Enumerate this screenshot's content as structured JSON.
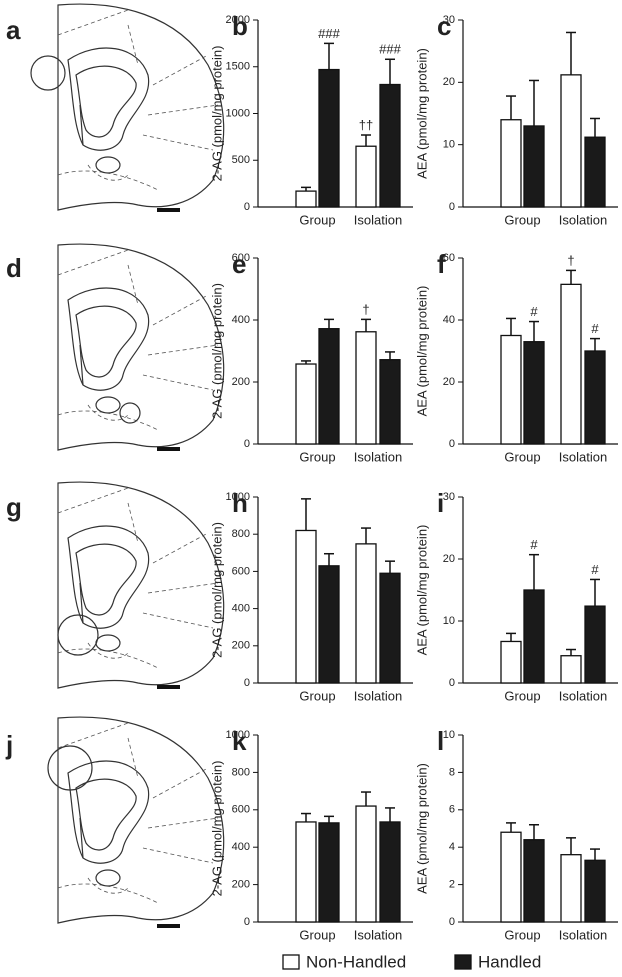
{
  "brain_panels": [
    "a",
    "d",
    "g",
    "j"
  ],
  "legend": [
    {
      "name": "Non-Handled",
      "color": "#ffffff"
    },
    {
      "name": "Handled",
      "color": "#1a1a1a"
    }
  ],
  "chart_data": [
    {
      "type": "bar",
      "panel": "b",
      "y_label": "2-AG (pmol/mg protein)",
      "categories": [
        "Group",
        "Isolation"
      ],
      "ylim": [
        0,
        2000
      ],
      "yticks": [
        0,
        500,
        1000,
        1500,
        2000
      ],
      "series": [
        {
          "values": [
            170,
            650
          ],
          "errors": [
            40,
            120
          ],
          "annotations": [
            null,
            "††"
          ]
        },
        {
          "values": [
            1470,
            1310
          ],
          "errors": [
            280,
            270
          ],
          "annotations": [
            "###",
            "###"
          ]
        }
      ]
    },
    {
      "type": "bar",
      "panel": "c",
      "y_label": "AEA (pmol/mg protein)",
      "categories": [
        "Group",
        "Isolation"
      ],
      "ylim": [
        0,
        30
      ],
      "yticks": [
        0,
        10,
        20,
        30
      ],
      "series": [
        {
          "values": [
            14,
            21.2
          ],
          "errors": [
            3.8,
            6.8
          ],
          "annotations": [
            null,
            null
          ]
        },
        {
          "values": [
            13,
            11.2
          ],
          "errors": [
            7.3,
            3
          ],
          "annotations": [
            null,
            null
          ]
        }
      ]
    },
    {
      "type": "bar",
      "panel": "e",
      "y_label": "2-AG (pmol/mg protein)",
      "categories": [
        "Group",
        "Isolation"
      ],
      "ylim": [
        0,
        600
      ],
      "yticks": [
        0,
        200,
        400,
        600
      ],
      "series": [
        {
          "values": [
            258,
            362
          ],
          "errors": [
            10,
            40
          ],
          "annotations": [
            null,
            "†"
          ]
        },
        {
          "values": [
            372,
            272
          ],
          "errors": [
            30,
            25
          ],
          "annotations": [
            null,
            null
          ]
        }
      ]
    },
    {
      "type": "bar",
      "panel": "f",
      "y_label": "AEA (pmol/mg protein)",
      "categories": [
        "Group",
        "Isolation"
      ],
      "ylim": [
        0,
        60
      ],
      "yticks": [
        0,
        20,
        40,
        60
      ],
      "series": [
        {
          "values": [
            35,
            51.5
          ],
          "errors": [
            5.5,
            4.5
          ],
          "annotations": [
            null,
            "†"
          ]
        },
        {
          "values": [
            33,
            30
          ],
          "errors": [
            6.5,
            4
          ],
          "annotations": [
            "#",
            "#"
          ]
        }
      ]
    },
    {
      "type": "bar",
      "panel": "h",
      "y_label": "2-AG (pmol/mg protein)",
      "categories": [
        "Group",
        "Isolation"
      ],
      "ylim": [
        0,
        1000
      ],
      "yticks": [
        0,
        200,
        400,
        600,
        800,
        1000
      ],
      "series": [
        {
          "values": [
            820,
            748
          ],
          "errors": [
            170,
            85
          ],
          "annotations": [
            null,
            null
          ]
        },
        {
          "values": [
            630,
            590
          ],
          "errors": [
            65,
            65
          ],
          "annotations": [
            null,
            null
          ]
        }
      ]
    },
    {
      "type": "bar",
      "panel": "i",
      "y_label": "AEA (pmol/mg protein)",
      "categories": [
        "Group",
        "Isolation"
      ],
      "ylim": [
        0,
        30
      ],
      "yticks": [
        0,
        10,
        20,
        30
      ],
      "series": [
        {
          "values": [
            6.7,
            4.4
          ],
          "errors": [
            1.3,
            1
          ],
          "annotations": [
            null,
            null
          ]
        },
        {
          "values": [
            15,
            12.4
          ],
          "errors": [
            5.7,
            4.3
          ],
          "annotations": [
            "#",
            "#"
          ]
        }
      ]
    },
    {
      "type": "bar",
      "panel": "k",
      "y_label": "2-AG (pmol/mg protein)",
      "categories": [
        "Group",
        "Isolation"
      ],
      "ylim": [
        0,
        1000
      ],
      "yticks": [
        0,
        200,
        400,
        600,
        800,
        1000
      ],
      "series": [
        {
          "values": [
            535,
            620
          ],
          "errors": [
            45,
            75
          ],
          "annotations": [
            null,
            null
          ]
        },
        {
          "values": [
            530,
            535
          ],
          "errors": [
            35,
            75
          ],
          "annotations": [
            null,
            null
          ]
        }
      ]
    },
    {
      "type": "bar",
      "panel": "l",
      "y_label": "AEA (pmol/mg protein)",
      "categories": [
        "Group",
        "Isolation"
      ],
      "ylim": [
        0,
        10
      ],
      "yticks": [
        0,
        2,
        4,
        6,
        8,
        10
      ],
      "series": [
        {
          "values": [
            4.8,
            3.6
          ],
          "errors": [
            0.5,
            0.9
          ],
          "annotations": [
            null,
            null
          ]
        },
        {
          "values": [
            4.4,
            3.3
          ],
          "errors": [
            0.8,
            0.6
          ],
          "annotations": [
            null,
            null
          ]
        }
      ]
    }
  ]
}
